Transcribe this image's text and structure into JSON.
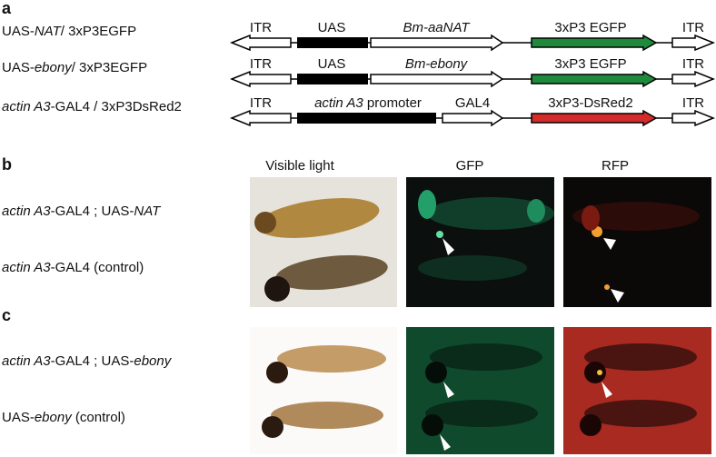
{
  "panel_a": {
    "label": "a",
    "rows": [
      {
        "name": [
          {
            "text": "UAS-"
          },
          {
            "text": "NAT",
            "italic": true
          },
          {
            "text": "/ 3xP3EGFP"
          }
        ],
        "elements": [
          [
            {
              "text": "ITR"
            }
          ],
          [
            {
              "text": "UAS"
            }
          ],
          [
            {
              "text": "Bm-aaNAT",
              "italic": true
            }
          ],
          [
            {
              "text": "3xP3 EGFP"
            }
          ],
          [
            {
              "text": "ITR"
            }
          ]
        ]
      },
      {
        "name": [
          {
            "text": "UAS-"
          },
          {
            "text": "ebony",
            "italic": true
          },
          {
            "text": "/ 3xP3EGFP"
          }
        ],
        "elements": [
          [
            {
              "text": "ITR"
            }
          ],
          [
            {
              "text": "UAS"
            }
          ],
          [
            {
              "text": "Bm-ebony",
              "italic": true
            }
          ],
          [
            {
              "text": "3xP3 EGFP"
            }
          ],
          [
            {
              "text": "ITR"
            }
          ]
        ]
      },
      {
        "name": [
          {
            "text": "actin A3",
            "italic": true
          },
          {
            "text": "-GAL4 / 3xP3DsRed2"
          }
        ],
        "elements": [
          [
            {
              "text": "ITR"
            }
          ],
          [
            {
              "text": "actin A3",
              "italic": true
            },
            {
              "text": " promoter"
            }
          ],
          [
            {
              "text": "GAL4"
            }
          ],
          [
            {
              "text": "3xP3-DsRed2"
            }
          ],
          [
            {
              "text": "ITR"
            }
          ]
        ]
      }
    ]
  },
  "panel_b": {
    "label": "b",
    "columns": [
      "Visible light",
      "GFP",
      "RFP"
    ],
    "rows": [
      [
        {
          "text": "actin A3",
          "italic": true
        },
        {
          "text": "-GAL4 ; UAS-"
        },
        {
          "text": "NAT",
          "italic": true
        }
      ],
      [
        {
          "text": "actin A3",
          "italic": true
        },
        {
          "text": "-GAL4 (control)"
        }
      ]
    ]
  },
  "panel_c": {
    "label": "c",
    "rows": [
      [
        {
          "text": "actin A3",
          "italic": true
        },
        {
          "text": "-GAL4 ; UAS-"
        },
        {
          "text": "ebony",
          "italic": true
        }
      ],
      [
        {
          "text": "UAS-"
        },
        {
          "text": "ebony",
          "italic": true
        },
        {
          "text": " (control)"
        }
      ]
    ]
  }
}
